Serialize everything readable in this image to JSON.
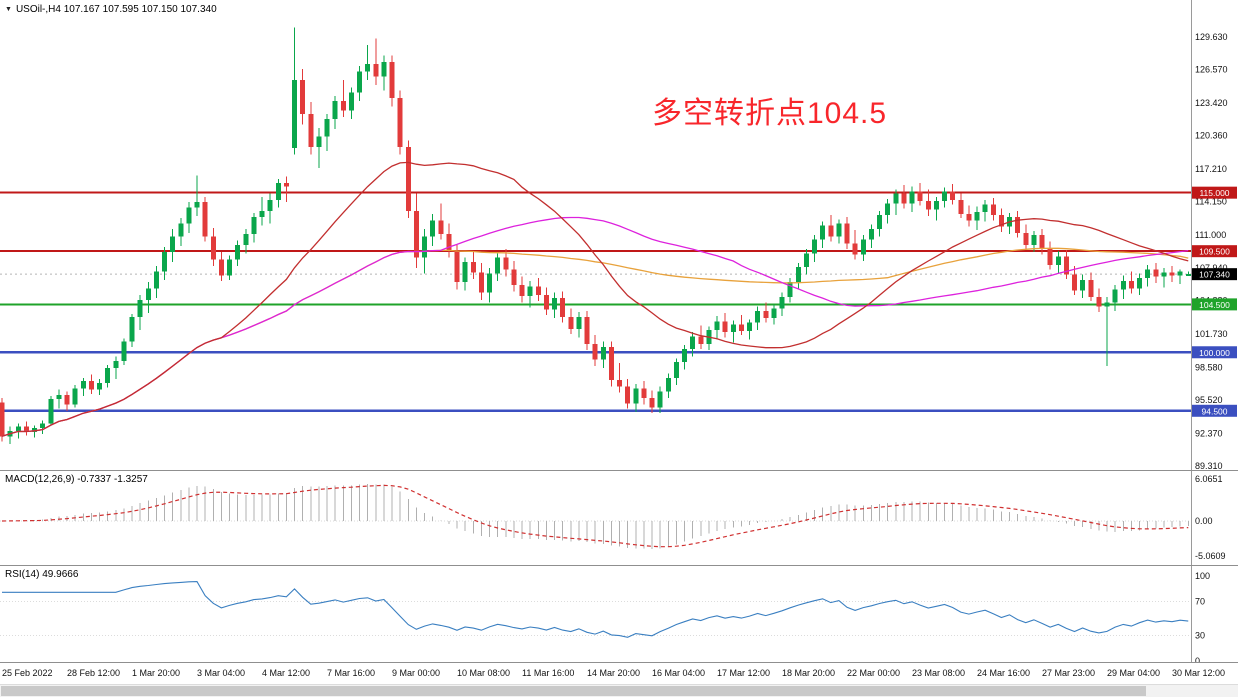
{
  "window": {
    "symbol_marker": "▼",
    "quote_line": "USOil-,H4 107.167 107.595 107.150 107.340",
    "annotation": {
      "text": "多空转折点104.5",
      "color": "#f8262b"
    }
  },
  "chart_data": {
    "type": "candlestick",
    "symbol": "USOil-",
    "timeframe": "H4",
    "current_bar_ohlc": [
      107.167,
      107.595,
      107.15,
      107.34
    ],
    "up_color": "#0aa64b",
    "down_color": "#e23b3b",
    "price_axis_ticks": [
      {
        "label": "129.630",
        "value": 129.63
      },
      {
        "label": "126.570",
        "value": 126.57
      },
      {
        "label": "123.420",
        "value": 123.42
      },
      {
        "label": "120.360",
        "value": 120.36
      },
      {
        "label": "117.210",
        "value": 117.21
      },
      {
        "label": "114.150",
        "value": 114.15
      },
      {
        "label": "111.000",
        "value": 111.0
      },
      {
        "label": "107.940",
        "value": 107.94
      },
      {
        "label": "104.880",
        "value": 104.88
      },
      {
        "label": "101.730",
        "value": 101.73
      },
      {
        "label": "98.580",
        "value": 98.58
      },
      {
        "label": "95.520",
        "value": 95.52
      },
      {
        "label": "92.370",
        "value": 92.37
      },
      {
        "label": "89.310",
        "value": 89.31
      }
    ],
    "levels": [
      {
        "label": "115.000",
        "value": 115.0,
        "color": "#c01818",
        "width": 2
      },
      {
        "label": "109.500",
        "value": 109.5,
        "color": "#c01818",
        "width": 2
      },
      {
        "label": "104.500",
        "value": 104.5,
        "color": "#1fa32a",
        "width": 2
      },
      {
        "label": "100.000",
        "value": 100.0,
        "color": "#3b4fc0",
        "width": 2.5
      },
      {
        "label": "94.500",
        "value": 94.5,
        "color": "#3b4fc0",
        "width": 2.5
      }
    ],
    "current_price": {
      "label": "107.340",
      "value": 107.34,
      "badge_color": "#000000"
    },
    "moving_averages": [
      {
        "name": "slow-ma",
        "color": "#e8a23c",
        "period": 110
      },
      {
        "name": "mid-ma",
        "color": "#dd22dd",
        "period": 55
      },
      {
        "name": "fast-ma",
        "color": "#c22f2f",
        "period": 28
      }
    ],
    "indicators": {
      "macd": {
        "label": "MACD(12,26,9) -0.7337 -1.3257",
        "fast": 12,
        "slow": 26,
        "signal": 9,
        "histogram_color": "#b0b0b0",
        "signal_color": "#d03030",
        "ticks": [
          {
            "label": "6.0651",
            "value": 6.0651
          },
          {
            "label": "0.00",
            "value": 0
          },
          {
            "label": "-5.0609",
            "value": -5.0609
          }
        ]
      },
      "rsi": {
        "label": "RSI(14) 49.9666",
        "period": 14,
        "line_color": "#3a7fc1",
        "ticks": [
          {
            "label": "100",
            "value": 100
          },
          {
            "label": "70",
            "value": 70
          },
          {
            "label": "30",
            "value": 30
          },
          {
            "label": "0",
            "value": 0
          }
        ]
      }
    },
    "time_labels": [
      {
        "text": "25 Feb 2022",
        "bar": 0
      },
      {
        "text": "28 Feb 12:00",
        "bar": 8
      },
      {
        "text": "1 Mar 20:00",
        "bar": 16
      },
      {
        "text": "3 Mar 04:00",
        "bar": 24
      },
      {
        "text": "4 Mar 12:00",
        "bar": 32
      },
      {
        "text": "7 Mar 16:00",
        "bar": 40
      },
      {
        "text": "9 Mar 00:00",
        "bar": 48
      },
      {
        "text": "10 Mar 08:00",
        "bar": 56
      },
      {
        "text": "11 Mar 16:00",
        "bar": 64
      },
      {
        "text": "14 Mar 20:00",
        "bar": 72
      },
      {
        "text": "16 Mar 04:00",
        "bar": 80
      },
      {
        "text": "17 Mar 12:00",
        "bar": 88
      },
      {
        "text": "18 Mar 20:00",
        "bar": 96
      },
      {
        "text": "22 Mar 00:00",
        "bar": 104
      },
      {
        "text": "23 Mar 08:00",
        "bar": 112
      },
      {
        "text": "24 Mar 16:00",
        "bar": 120
      },
      {
        "text": "27 Mar 23:00",
        "bar": 128
      },
      {
        "text": "29 Mar 04:00",
        "bar": 136
      },
      {
        "text": "30 Mar 12:00",
        "bar": 144
      }
    ],
    "candles": [
      [
        95.3,
        95.7,
        91.6,
        92.1
      ],
      [
        92.1,
        93.0,
        91.4,
        92.6
      ],
      [
        92.6,
        93.3,
        91.9,
        93.0
      ],
      [
        93.0,
        93.5,
        92.2,
        92.5
      ],
      [
        92.5,
        93.1,
        92.0,
        92.9
      ],
      [
        92.9,
        93.6,
        92.3,
        93.3
      ],
      [
        93.3,
        95.9,
        93.1,
        95.6
      ],
      [
        95.6,
        96.5,
        94.7,
        96.0
      ],
      [
        96.0,
        96.3,
        94.5,
        95.1
      ],
      [
        95.1,
        96.9,
        94.8,
        96.6
      ],
      [
        96.6,
        97.6,
        95.9,
        97.3
      ],
      [
        97.3,
        97.9,
        96.1,
        96.5
      ],
      [
        96.5,
        97.5,
        96.0,
        97.1
      ],
      [
        97.1,
        98.8,
        96.7,
        98.5
      ],
      [
        98.5,
        99.6,
        97.5,
        99.2
      ],
      [
        99.2,
        101.3,
        98.8,
        101.0
      ],
      [
        101.0,
        103.6,
        100.5,
        103.3
      ],
      [
        103.3,
        105.4,
        102.1,
        104.9
      ],
      [
        104.9,
        106.6,
        103.7,
        106.0
      ],
      [
        106.0,
        108.1,
        105.1,
        107.6
      ],
      [
        107.6,
        109.9,
        106.8,
        109.4
      ],
      [
        109.4,
        111.6,
        108.5,
        110.9
      ],
      [
        110.9,
        112.6,
        110.0,
        112.1
      ],
      [
        112.1,
        114.1,
        111.2,
        113.6
      ],
      [
        113.6,
        116.6,
        112.8,
        114.1
      ],
      [
        114.1,
        114.6,
        110.4,
        110.9
      ],
      [
        110.9,
        111.7,
        108.1,
        108.7
      ],
      [
        108.7,
        109.4,
        106.7,
        107.2
      ],
      [
        107.2,
        109.1,
        106.8,
        108.7
      ],
      [
        108.7,
        110.5,
        108.1,
        110.1
      ],
      [
        110.1,
        111.6,
        109.3,
        111.1
      ],
      [
        111.1,
        113.1,
        110.3,
        112.7
      ],
      [
        112.7,
        114.6,
        111.9,
        113.3
      ],
      [
        113.3,
        114.9,
        112.1,
        114.3
      ],
      [
        114.3,
        116.3,
        113.6,
        115.9
      ],
      [
        115.9,
        116.5,
        114.1,
        115.6
      ],
      [
        119.2,
        130.5,
        118.6,
        125.6
      ],
      [
        125.6,
        126.6,
        121.4,
        122.4
      ],
      [
        122.4,
        123.5,
        118.6,
        119.3
      ],
      [
        119.3,
        121.1,
        117.3,
        120.3
      ],
      [
        120.3,
        122.4,
        118.9,
        121.9
      ],
      [
        121.9,
        124.1,
        121.0,
        123.6
      ],
      [
        123.6,
        125.6,
        122.1,
        122.7
      ],
      [
        122.7,
        124.9,
        121.9,
        124.4
      ],
      [
        124.4,
        126.9,
        123.6,
        126.4
      ],
      [
        126.4,
        128.9,
        125.6,
        127.1
      ],
      [
        127.1,
        129.5,
        125.1,
        125.9
      ],
      [
        125.9,
        127.9,
        124.6,
        127.3
      ],
      [
        127.3,
        127.9,
        123.1,
        123.9
      ],
      [
        123.9,
        124.6,
        118.6,
        119.3
      ],
      [
        119.3,
        119.9,
        112.6,
        113.3
      ],
      [
        113.3,
        114.9,
        107.9,
        108.9
      ],
      [
        108.9,
        111.6,
        107.4,
        110.9
      ],
      [
        110.9,
        113.0,
        110.0,
        112.4
      ],
      [
        112.4,
        114.0,
        110.6,
        111.1
      ],
      [
        111.1,
        112.1,
        108.9,
        109.5
      ],
      [
        109.5,
        110.1,
        105.9,
        106.6
      ],
      [
        106.6,
        108.9,
        105.8,
        108.5
      ],
      [
        108.5,
        109.5,
        106.9,
        107.5
      ],
      [
        107.5,
        108.4,
        104.9,
        105.6
      ],
      [
        105.6,
        107.9,
        104.7,
        107.4
      ],
      [
        107.4,
        109.3,
        106.7,
        108.9
      ],
      [
        108.9,
        109.7,
        107.1,
        107.8
      ],
      [
        107.8,
        108.6,
        105.7,
        106.3
      ],
      [
        106.3,
        107.1,
        104.7,
        105.3
      ],
      [
        105.3,
        106.7,
        104.2,
        106.2
      ],
      [
        106.2,
        107.0,
        104.8,
        105.4
      ],
      [
        105.4,
        106.1,
        103.5,
        104.0
      ],
      [
        104.0,
        105.6,
        103.2,
        105.1
      ],
      [
        105.1,
        105.7,
        102.8,
        103.3
      ],
      [
        103.3,
        104.1,
        101.7,
        102.2
      ],
      [
        102.2,
        103.8,
        101.4,
        103.3
      ],
      [
        103.3,
        103.9,
        100.2,
        100.8
      ],
      [
        100.8,
        101.6,
        98.7,
        99.3
      ],
      [
        99.3,
        101.0,
        98.5,
        100.5
      ],
      [
        100.5,
        101.0,
        96.8,
        97.4
      ],
      [
        97.4,
        99.0,
        96.2,
        96.8
      ],
      [
        96.8,
        97.5,
        94.7,
        95.2
      ],
      [
        95.2,
        97.0,
        94.4,
        96.6
      ],
      [
        96.6,
        97.3,
        95.1,
        95.7
      ],
      [
        95.7,
        96.4,
        94.3,
        94.8
      ],
      [
        94.8,
        96.8,
        94.3,
        96.3
      ],
      [
        96.3,
        98.0,
        95.7,
        97.6
      ],
      [
        97.6,
        99.4,
        96.9,
        99.1
      ],
      [
        99.1,
        100.7,
        98.4,
        100.3
      ],
      [
        100.3,
        101.9,
        99.6,
        101.5
      ],
      [
        101.5,
        102.5,
        100.3,
        100.8
      ],
      [
        100.8,
        102.4,
        100.2,
        102.1
      ],
      [
        102.1,
        103.4,
        101.2,
        102.9
      ],
      [
        102.9,
        103.7,
        101.4,
        101.9
      ],
      [
        101.9,
        103.0,
        100.9,
        102.6
      ],
      [
        102.6,
        103.5,
        101.6,
        102.0
      ],
      [
        102.0,
        103.1,
        101.2,
        102.8
      ],
      [
        102.8,
        104.3,
        102.1,
        103.9
      ],
      [
        103.9,
        104.7,
        102.8,
        103.2
      ],
      [
        103.2,
        104.5,
        102.6,
        104.1
      ],
      [
        104.1,
        105.6,
        103.4,
        105.2
      ],
      [
        105.2,
        107.0,
        104.7,
        106.6
      ],
      [
        106.6,
        108.4,
        105.9,
        108.0
      ],
      [
        108.0,
        109.7,
        107.3,
        109.3
      ],
      [
        109.3,
        111.0,
        108.5,
        110.6
      ],
      [
        110.6,
        112.3,
        109.8,
        111.9
      ],
      [
        111.9,
        112.9,
        110.4,
        110.9
      ],
      [
        110.9,
        112.5,
        110.2,
        112.1
      ],
      [
        112.1,
        112.7,
        109.7,
        110.2
      ],
      [
        110.2,
        111.5,
        108.7,
        109.2
      ],
      [
        109.2,
        111.0,
        108.6,
        110.6
      ],
      [
        110.6,
        112.0,
        109.8,
        111.6
      ],
      [
        111.6,
        113.3,
        110.9,
        112.9
      ],
      [
        112.9,
        114.4,
        112.1,
        114.0
      ],
      [
        114.0,
        115.3,
        112.9,
        114.9
      ],
      [
        114.9,
        115.7,
        113.5,
        114.0
      ],
      [
        114.0,
        115.6,
        113.2,
        115.1
      ],
      [
        115.1,
        115.9,
        113.8,
        114.2
      ],
      [
        114.2,
        115.3,
        112.8,
        113.4
      ],
      [
        113.4,
        114.6,
        112.4,
        114.2
      ],
      [
        114.2,
        115.5,
        113.6,
        115.1
      ],
      [
        115.1,
        115.8,
        113.9,
        114.3
      ],
      [
        114.3,
        114.9,
        112.6,
        113.0
      ],
      [
        113.0,
        113.8,
        111.8,
        112.4
      ],
      [
        112.4,
        113.7,
        111.5,
        113.2
      ],
      [
        113.2,
        114.3,
        112.3,
        113.9
      ],
      [
        113.9,
        114.5,
        112.4,
        112.9
      ],
      [
        112.9,
        113.5,
        111.3,
        111.8
      ],
      [
        111.8,
        113.1,
        111.1,
        112.7
      ],
      [
        112.7,
        113.3,
        110.8,
        111.2
      ],
      [
        111.2,
        112.0,
        109.7,
        110.1
      ],
      [
        110.1,
        111.4,
        109.4,
        111.0
      ],
      [
        111.0,
        111.6,
        109.2,
        109.7
      ],
      [
        109.7,
        110.4,
        107.8,
        108.2
      ],
      [
        108.2,
        109.5,
        107.4,
        109.0
      ],
      [
        109.0,
        109.6,
        106.9,
        107.3
      ],
      [
        107.3,
        108.1,
        105.4,
        105.8
      ],
      [
        105.8,
        107.3,
        105.1,
        106.8
      ],
      [
        106.8,
        107.5,
        104.8,
        105.2
      ],
      [
        105.2,
        106.0,
        103.8,
        104.3
      ],
      [
        104.3,
        105.2,
        98.7,
        104.7
      ],
      [
        104.7,
        106.3,
        103.9,
        105.9
      ],
      [
        105.9,
        107.2,
        105.0,
        106.7
      ],
      [
        106.7,
        107.6,
        105.5,
        106.0
      ],
      [
        106.0,
        107.4,
        105.4,
        107.0
      ],
      [
        107.0,
        108.2,
        106.2,
        107.8
      ],
      [
        107.8,
        108.4,
        106.5,
        107.1
      ],
      [
        107.1,
        107.9,
        106.1,
        107.5
      ],
      [
        107.5,
        108.1,
        106.6,
        107.2
      ],
      [
        107.2,
        107.8,
        106.4,
        107.6
      ],
      [
        107.167,
        107.595,
        107.15,
        107.34
      ]
    ]
  }
}
